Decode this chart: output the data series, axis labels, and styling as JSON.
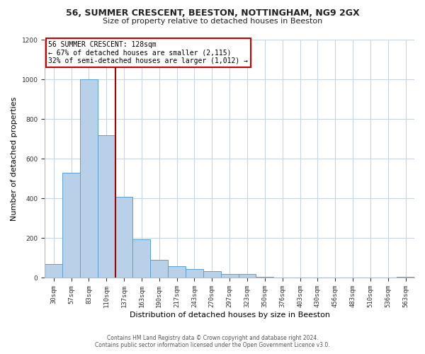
{
  "title": "56, SUMMER CRESCENT, BEESTON, NOTTINGHAM, NG9 2GX",
  "subtitle": "Size of property relative to detached houses in Beeston",
  "xlabel": "Distribution of detached houses by size in Beeston",
  "ylabel": "Number of detached properties",
  "bar_labels": [
    "30sqm",
    "57sqm",
    "83sqm",
    "110sqm",
    "137sqm",
    "163sqm",
    "190sqm",
    "217sqm",
    "243sqm",
    "270sqm",
    "297sqm",
    "323sqm",
    "350sqm",
    "376sqm",
    "403sqm",
    "430sqm",
    "456sqm",
    "483sqm",
    "510sqm",
    "536sqm",
    "563sqm"
  ],
  "bar_values": [
    70,
    530,
    1000,
    720,
    410,
    195,
    90,
    60,
    45,
    32,
    20,
    18,
    5,
    3,
    2,
    1,
    1,
    0,
    0,
    0,
    5
  ],
  "bar_color": "#b8d0e8",
  "bar_edge_color": "#5a9fd4",
  "annotation_label": "56 SUMMER CRESCENT: 128sqm",
  "annotation_line1": "← 67% of detached houses are smaller (2,115)",
  "annotation_line2": "32% of semi-detached houses are larger (1,012) →",
  "annotation_box_color": "#ffffff",
  "annotation_box_edge_color": "#cc0000",
  "line_color": "#aa0000",
  "ylim": [
    0,
    1200
  ],
  "yticks": [
    0,
    200,
    400,
    600,
    800,
    1000,
    1200
  ],
  "footnote1": "Contains HM Land Registry data © Crown copyright and database right 2024.",
  "footnote2": "Contains public sector information licensed under the Open Government Licence v3.0.",
  "bg_color": "#ffffff",
  "grid_color": "#c8d4e0"
}
